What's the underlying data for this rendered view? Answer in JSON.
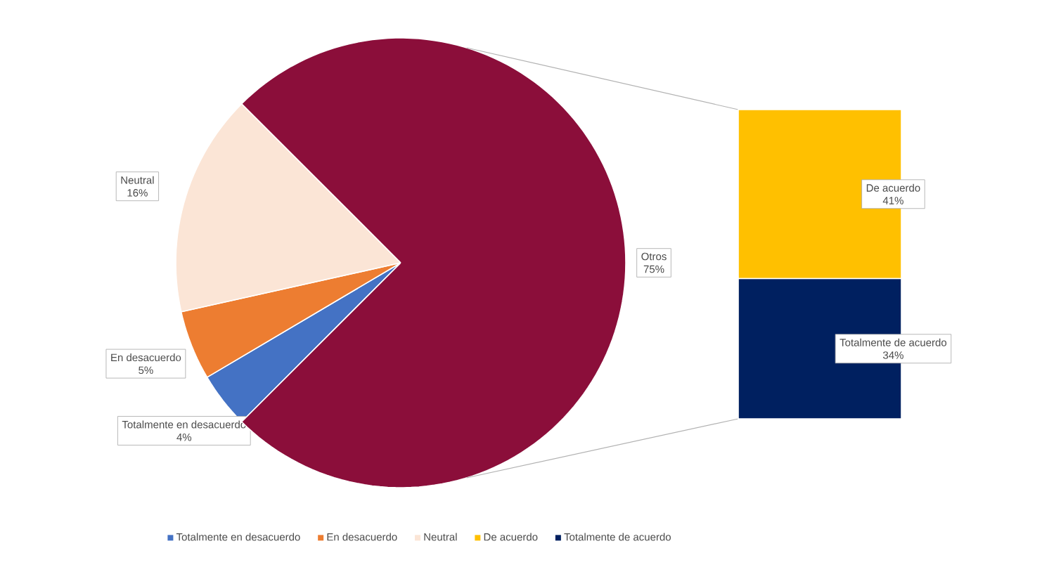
{
  "chart_data": [
    {
      "type": "pie",
      "categories": [
        "Totalmente en desacuerdo",
        "En desacuerdo",
        "Neutral",
        "Otros"
      ],
      "values": [
        4,
        5,
        16,
        75
      ],
      "value_labels": [
        "4%",
        "5%",
        "16%",
        "75%"
      ],
      "colors": [
        "#4472c4",
        "#ed7d31",
        "#fbe5d6",
        "#8b0e3a"
      ],
      "legend": "bottom"
    },
    {
      "type": "bar",
      "stacked": true,
      "categories": [
        null
      ],
      "legend": "bottom",
      "series": [
        {
          "name": "Totalmente de acuerdo",
          "color": "#002060",
          "values": [
            34
          ],
          "value_labels": [
            "34%"
          ]
        },
        {
          "name": "De acuerdo",
          "color": "#ffc000",
          "values": [
            41
          ],
          "value_labels": [
            "41%"
          ]
        }
      ]
    }
  ]
}
